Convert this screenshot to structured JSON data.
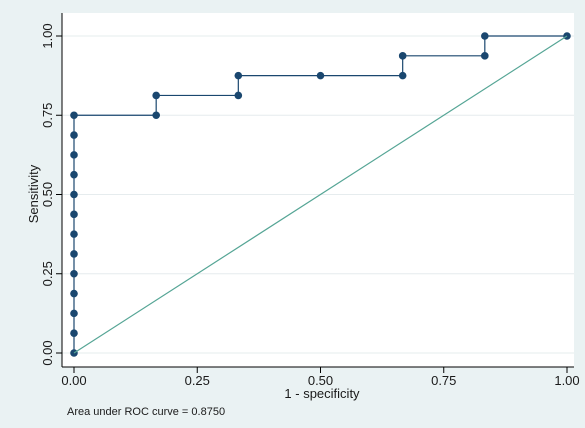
{
  "chart_data": {
    "type": "line",
    "xlabel": "1 - specificity",
    "ylabel": "Sensitivity",
    "xlim": [
      0,
      1
    ],
    "ylim": [
      0,
      1
    ],
    "x_ticks": [
      "0.00",
      "0.25",
      "0.50",
      "0.75",
      "1.00"
    ],
    "y_ticks": [
      "0.00",
      "0.25",
      "0.50",
      "0.75",
      "1.00"
    ],
    "grid": "y-major",
    "legend": "none",
    "note": "Area under ROC curve = 0.8750",
    "series": [
      {
        "kind": "roc-step-with-markers",
        "color": "#1a476f",
        "x": [
          0,
          0,
          0,
          0,
          0,
          0,
          0,
          0,
          0,
          0,
          0,
          0,
          0,
          0.1667,
          0.1667,
          0.3333,
          0.3333,
          0.5,
          0.6667,
          0.6667,
          0.8333,
          0.8333,
          1
        ],
        "y": [
          0,
          0.0625,
          0.125,
          0.1875,
          0.25,
          0.3125,
          0.375,
          0.4375,
          0.5,
          0.5625,
          0.625,
          0.6875,
          0.75,
          0.75,
          0.8125,
          0.8125,
          0.875,
          0.875,
          0.875,
          0.9375,
          0.9375,
          1,
          1
        ]
      },
      {
        "kind": "reference-diagonal",
        "color": "#55a595",
        "x": [
          0,
          1
        ],
        "y": [
          0,
          1
        ]
      }
    ]
  }
}
